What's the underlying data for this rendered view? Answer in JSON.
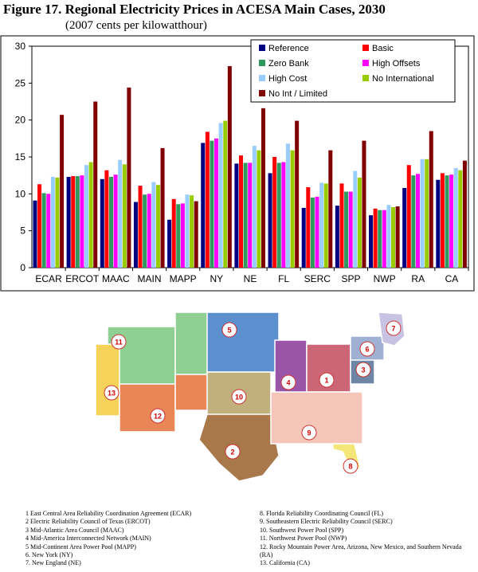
{
  "header": {
    "title": "Figure 17.  Regional Electricity Prices in ACESA Main Cases, 2030",
    "subtitle": "(2007 cents per kilowatthour)"
  },
  "chart_data": {
    "type": "bar",
    "categories": [
      "ECAR",
      "ERCOT",
      "MAAC",
      "MAIN",
      "MAPP",
      "NY",
      "NE",
      "FL",
      "SERC",
      "SPP",
      "NWP",
      "RA",
      "CA"
    ],
    "ylim": [
      0,
      30
    ],
    "yticks": [
      0,
      5,
      10,
      15,
      20,
      25,
      30
    ],
    "grid": false,
    "legend_position": "top-right",
    "series": [
      {
        "name": "Reference",
        "color": "#000080",
        "values": [
          9.1,
          12.3,
          12.0,
          8.9,
          6.5,
          16.9,
          14.1,
          12.8,
          8.1,
          8.4,
          7.1,
          10.8,
          11.9
        ]
      },
      {
        "name": "Basic",
        "color": "#ff0000",
        "values": [
          11.3,
          12.4,
          13.2,
          11.1,
          9.3,
          18.4,
          15.2,
          15.0,
          10.9,
          11.4,
          8.0,
          13.9,
          12.8
        ]
      },
      {
        "name": "Zero Bank",
        "color": "#2e9a5e",
        "values": [
          10.1,
          12.4,
          12.3,
          9.9,
          8.6,
          17.2,
          14.2,
          14.2,
          9.5,
          10.3,
          7.8,
          12.5,
          12.5
        ]
      },
      {
        "name": "High Offsets",
        "color": "#ff00ff",
        "values": [
          10.0,
          12.5,
          12.6,
          10.0,
          8.7,
          17.5,
          14.2,
          14.3,
          9.6,
          10.3,
          7.8,
          12.7,
          12.6
        ]
      },
      {
        "name": "High Cost",
        "color": "#99ccff",
        "values": [
          12.3,
          13.9,
          14.6,
          11.6,
          9.9,
          19.6,
          16.5,
          16.8,
          11.5,
          13.1,
          8.5,
          14.7,
          13.5
        ]
      },
      {
        "name": "No International",
        "color": "#99cc00",
        "values": [
          12.2,
          14.3,
          14.0,
          11.2,
          9.8,
          19.9,
          15.9,
          15.9,
          11.4,
          12.2,
          8.2,
          14.7,
          13.2
        ]
      },
      {
        "name": "No Int / Limited",
        "color": "#800000",
        "values": [
          20.7,
          22.5,
          24.4,
          16.2,
          9.0,
          27.3,
          21.6,
          19.9,
          15.9,
          17.2,
          8.3,
          18.5,
          14.5
        ]
      }
    ]
  },
  "map": {
    "regions": [
      {
        "num": "1",
        "color": "#cc6677"
      },
      {
        "num": "2",
        "color": "#a8774a"
      },
      {
        "num": "3",
        "color": "#6e86a3"
      },
      {
        "num": "4",
        "color": "#9a55a8"
      },
      {
        "num": "5",
        "color": "#5b8fce"
      },
      {
        "num": "6",
        "color": "#9fb0d2"
      },
      {
        "num": "7",
        "color": "#c8c2e3"
      },
      {
        "num": "8",
        "color": "#f5e67a"
      },
      {
        "num": "9",
        "color": "#f4c5b8"
      },
      {
        "num": "10",
        "color": "#c2b07c"
      },
      {
        "num": "11",
        "color": "#90cf92"
      },
      {
        "num": "12",
        "color": "#e88657"
      },
      {
        "num": "13",
        "color": "#f5d35a"
      }
    ]
  },
  "notes": {
    "left": [
      "1 East Central Area Reliability Coordination Agreement (ECAR)",
      "2 Electric Reliability Council of Texas (ERCOT)",
      "3 Mid-Atlantic Area Council (MAAC)",
      "4 Mid-America Interconnected Network (MAIN)",
      "5 Mid-Continent Area Power Pool (MAPP)",
      "6. New York (NY)",
      "7. New England (NE)"
    ],
    "right": [
      "8. Florida Reliability Coordinating Council (FL)",
      "9. Southeastern Electric Reliability Council (SERC)",
      "10. Southwest Power Pool (SPP)",
      "11. Northwest Power Pool (NWP)",
      "12. Rocky Mountain Power Area, Arizona, New Mexico, and Southern Nevada (RA)",
      "13. California (CA)"
    ]
  }
}
